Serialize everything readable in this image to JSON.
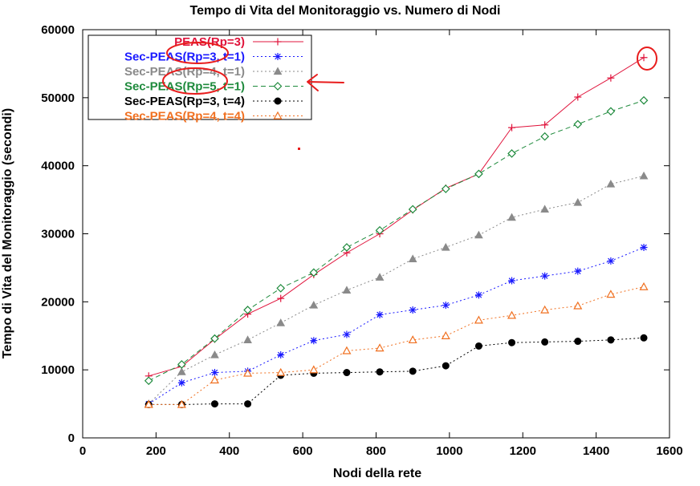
{
  "chart_data": {
    "type": "line",
    "title": "Tempo di Vita del Monitoraggio vs. Numero di Nodi",
    "xlabel": "Nodi della rete",
    "ylabel": "Tempo di Vita del Monitoraggio (secondi)",
    "xlim": [
      0,
      1600
    ],
    "ylim": [
      0,
      60000
    ],
    "xticks": [
      0,
      200,
      400,
      600,
      800,
      1000,
      1200,
      1400,
      1600
    ],
    "yticks": [
      0,
      10000,
      20000,
      30000,
      40000,
      50000,
      60000
    ],
    "grid": false,
    "legend_position": "top-left",
    "x": [
      180,
      270,
      360,
      450,
      540,
      630,
      720,
      810,
      900,
      990,
      1080,
      1170,
      1260,
      1350,
      1440,
      1530
    ],
    "series": [
      {
        "name": "PEAS(Rp=3)",
        "color": "#e0143c",
        "marker": "plus",
        "dash": "solid",
        "values": [
          9100,
          10500,
          14500,
          18200,
          20500,
          24000,
          27200,
          30000,
          33500,
          36700,
          38800,
          45600,
          46000,
          50100,
          52900,
          55900
        ]
      },
      {
        "name": "Sec-PEAS(Rp=3, t=1)",
        "color": "#1a1aff",
        "marker": "star",
        "dash": "dotted",
        "values": [
          5000,
          8100,
          9600,
          9800,
          12200,
          14300,
          15200,
          18100,
          18800,
          19500,
          21000,
          23100,
          23800,
          24500,
          26000,
          28000
        ]
      },
      {
        "name": "Sec-PEAS(Rp=4, t=1)",
        "color": "#8a8a8a",
        "marker": "filled-triangle",
        "dash": "dotted",
        "values": [
          5000,
          9700,
          12200,
          14400,
          16900,
          19500,
          21700,
          23600,
          26300,
          28000,
          29800,
          32400,
          33600,
          34600,
          37300,
          38500
        ]
      },
      {
        "name": "Sec-PEAS(Rp=5, t=1)",
        "color": "#1e8a3c",
        "marker": "diamond",
        "dash": "dashed",
        "values": [
          8400,
          10800,
          14600,
          18800,
          22000,
          24300,
          28000,
          30500,
          33600,
          36600,
          38800,
          41800,
          44300,
          46100,
          48000,
          49600
        ]
      },
      {
        "name": "Sec-PEAS(Rp=3, t=4)",
        "color": "#000000",
        "marker": "filled-circle",
        "dash": "dotted",
        "values": [
          4900,
          4900,
          5000,
          5000,
          9200,
          9500,
          9600,
          9700,
          9800,
          10600,
          13500,
          14000,
          14100,
          14200,
          14400,
          14700
        ]
      },
      {
        "name": "Sec-PEAS(Rp=4, t=4)",
        "color": "#f07020",
        "marker": "triangle",
        "dash": "dotted",
        "values": [
          4900,
          4900,
          8500,
          9500,
          9600,
          10000,
          12800,
          13200,
          14400,
          15000,
          17300,
          18000,
          18800,
          19400,
          21100,
          22200
        ]
      }
    ]
  },
  "annotations": {
    "circle_color": "#e81c1c",
    "arrow_color": "#e81c1c"
  }
}
